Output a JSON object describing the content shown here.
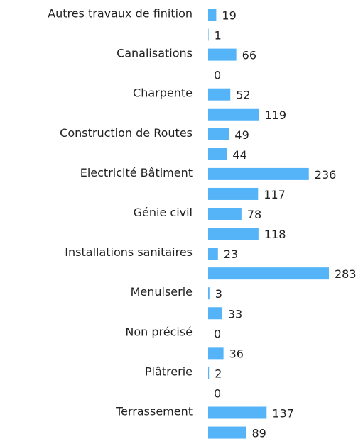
{
  "chart_data": {
    "type": "bar",
    "orientation": "horizontal",
    "color": "#55b4f7",
    "categories": [
      "Autres travaux de finition",
      null,
      "Canalisations",
      null,
      "Charpente",
      null,
      "Construction de Routes",
      null,
      "Electricité Bâtiment",
      null,
      "Génie civil",
      null,
      "Installations sanitaires",
      null,
      "Menuiserie",
      null,
      "Non précisé",
      null,
      "Plâtrerie",
      null,
      "Terrassement",
      null
    ],
    "values": [
      19,
      1,
      66,
      0,
      52,
      119,
      49,
      44,
      236,
      117,
      78,
      118,
      23,
      283,
      3,
      33,
      0,
      36,
      2,
      0,
      137,
      89
    ]
  }
}
